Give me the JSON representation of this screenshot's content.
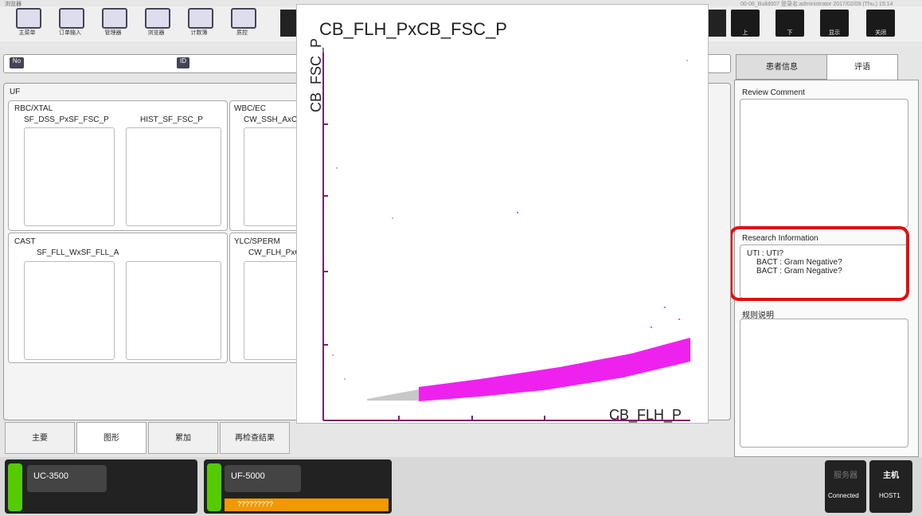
{
  "window_title": "浏览器",
  "toolbar": {
    "buttons": [
      "主菜单",
      "订单输入",
      "管理器",
      "浏览器",
      "计数簿",
      "质控"
    ],
    "status": "00-06_Build007 登录名:administrator 2017/02/09 (Thu.) 15:14",
    "nav": [
      "上",
      "下",
      "显示",
      "关闭"
    ]
  },
  "fields": {
    "no": "No",
    "id": "ID"
  },
  "tabs": [
    "患者信息",
    "评语"
  ],
  "comments": {
    "review": {
      "title": "Review Comment"
    },
    "research": {
      "title": "Research Information",
      "lines": [
        "UTI : UTI?",
        "BACT : Gram Negative?",
        "BACT : Gram Negative?"
      ]
    },
    "rules": {
      "title": "规则说明"
    }
  },
  "graphs": {
    "title": "UF",
    "groups": [
      {
        "name": "RBC/XTAL",
        "plots": [
          "SF_DSS_PxSF_FSC_P",
          "HIST_SF_FSC_P"
        ]
      },
      {
        "name": "WBC/EC",
        "plots": [
          "CW_SSH_AxC"
        ]
      },
      {
        "name": "CAST",
        "plots": [
          "SF_FLL_WxSF_FLL_A"
        ]
      },
      {
        "name": "YLC/SPERM",
        "plots": [
          "CW_FLH_PxC"
        ]
      }
    ]
  },
  "bottom_tabs": [
    "主要",
    "图形",
    "累加",
    "再检查结果"
  ],
  "popup": {
    "title": "CB_FLH_PxCB_FSC_P",
    "y_label": "CB_FSC_P",
    "x_label": "CB_FLH_P"
  },
  "status_bar": {
    "analyzers": [
      {
        "name": "UC-3500"
      },
      {
        "name": "UF-5000",
        "warning": "?????????"
      }
    ],
    "server": {
      "label": "服务器",
      "status": "Connected"
    },
    "host": {
      "label": "主机",
      "status": "HOST1"
    }
  }
}
